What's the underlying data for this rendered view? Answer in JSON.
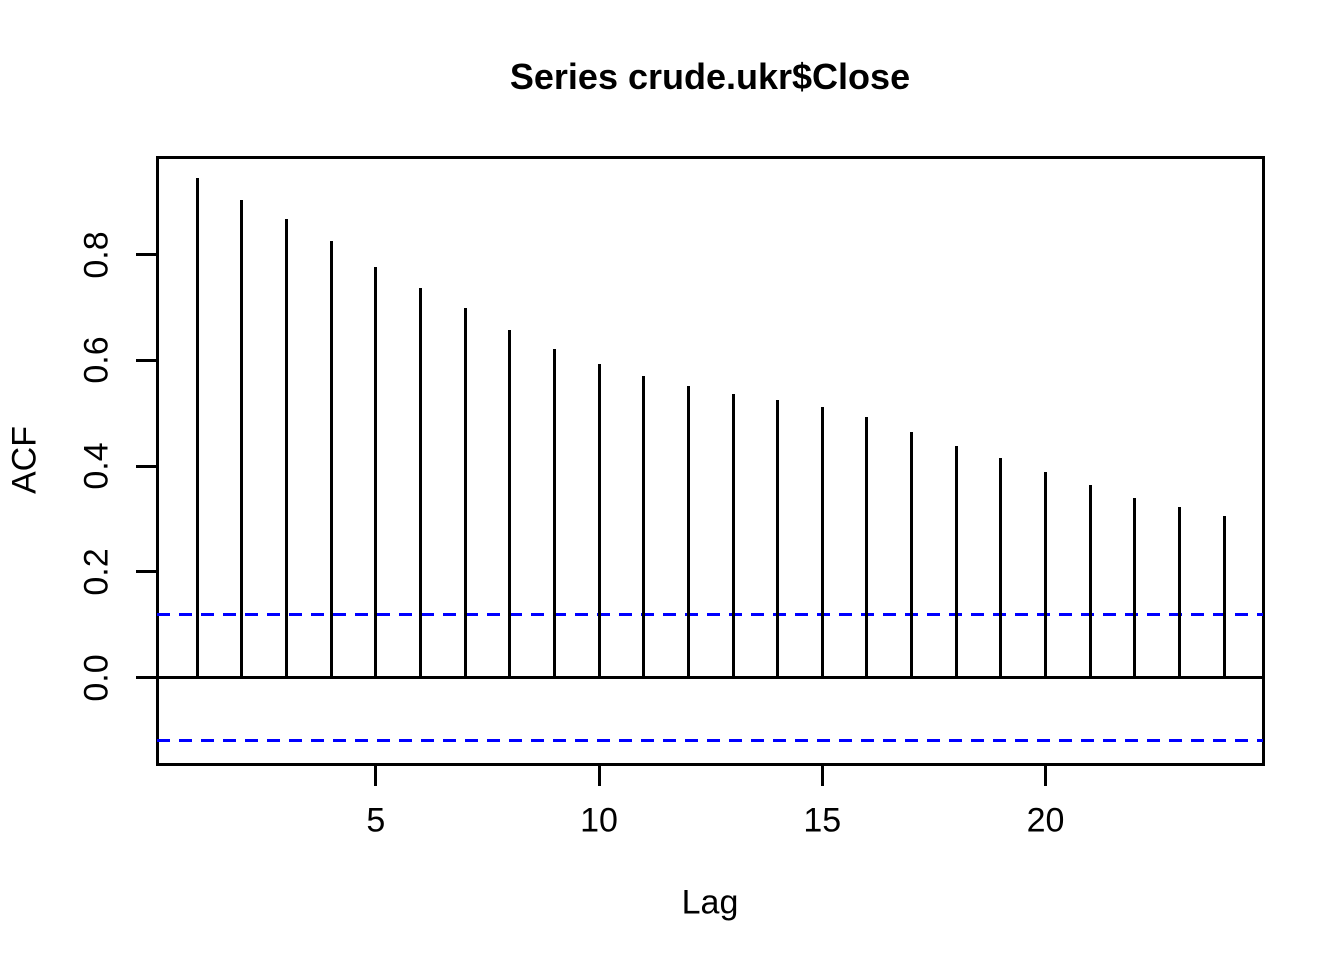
{
  "chart_data": {
    "type": "bar",
    "subtype": "acf-spike-plot",
    "title": "Series crude.ukr$Close",
    "xlabel": "Lag",
    "ylabel": "ACF",
    "lags": [
      1,
      2,
      3,
      4,
      5,
      6,
      7,
      8,
      9,
      10,
      11,
      12,
      13,
      14,
      15,
      16,
      17,
      18,
      19,
      20,
      21,
      22,
      23,
      24
    ],
    "values": [
      0.945,
      0.904,
      0.867,
      0.825,
      0.776,
      0.737,
      0.698,
      0.657,
      0.621,
      0.593,
      0.57,
      0.552,
      0.537,
      0.524,
      0.511,
      0.492,
      0.465,
      0.438,
      0.415,
      0.389,
      0.365,
      0.34,
      0.323,
      0.306
    ],
    "confidence_bounds": {
      "upper": 0.12,
      "lower": -0.12,
      "style": "dashed"
    },
    "x_ticks": [
      {
        "label": "5",
        "value": 5
      },
      {
        "label": "10",
        "value": 10
      },
      {
        "label": "15",
        "value": 15
      },
      {
        "label": "20",
        "value": 20
      }
    ],
    "y_ticks": [
      {
        "label": "0.0",
        "value": 0.0
      },
      {
        "label": "0.2",
        "value": 0.2
      },
      {
        "label": "0.4",
        "value": 0.4
      },
      {
        "label": "0.6",
        "value": 0.6
      },
      {
        "label": "0.8",
        "value": 0.8
      }
    ],
    "ylim": [
      -0.164,
      0.985
    ],
    "xlim": [
      0.08,
      24.92
    ],
    "zero_line": true,
    "grid": false,
    "legend_position": "none",
    "colors": {
      "spike": "#000000",
      "confidence_line": "#0000FF",
      "axis": "#000000",
      "background": "#FFFFFF",
      "text": "#000000"
    }
  }
}
